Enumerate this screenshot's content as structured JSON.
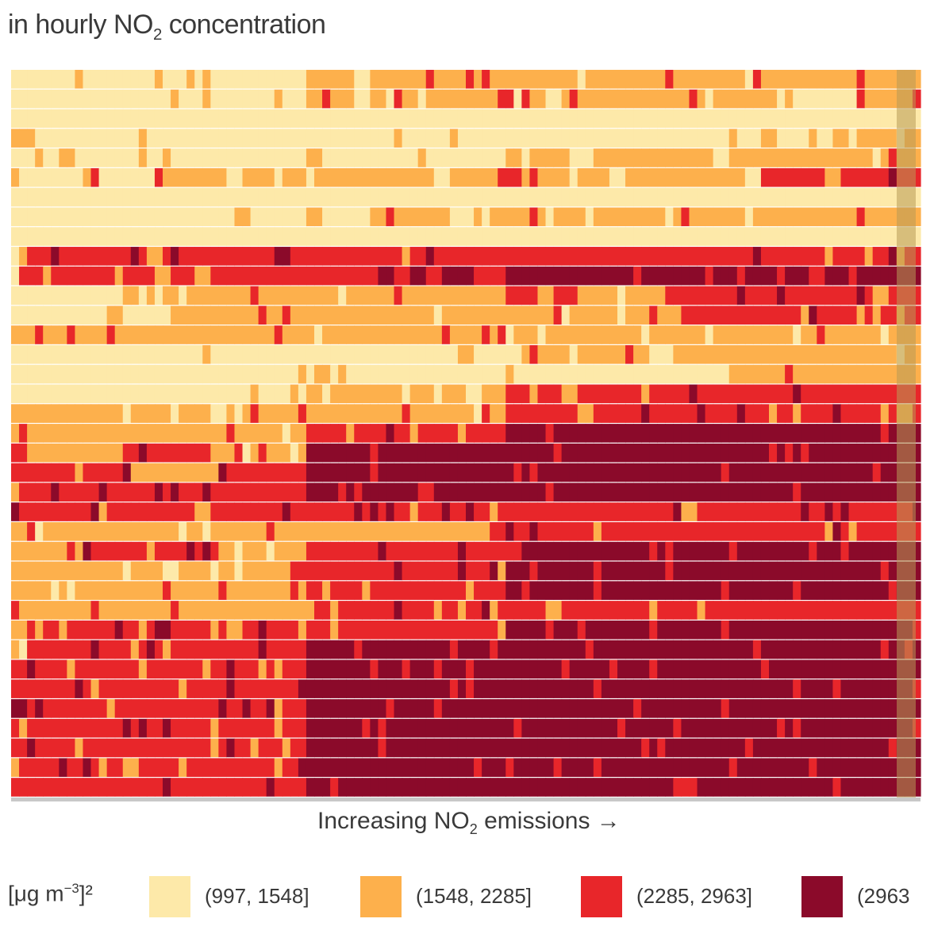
{
  "chart_data": {
    "type": "heatmap",
    "title_prefix": "in hourly NO",
    "title_sub": "2",
    "title_suffix": " concentration",
    "xlabel_prefix": "Increasing NO",
    "xlabel_sub": "2",
    "xlabel_suffix": " emissions →",
    "legend_unit": "[μg m",
    "legend_unit_sup": "−3",
    "legend_unit_suffix": "]²",
    "categories": [
      "(997, 1548]",
      "(1548, 2285]",
      "(2285, 2963]",
      "(2963"
    ],
    "colors": {
      "c0": "#fde9a9",
      "c1": "#fdb04c",
      "c2": "#e8262a",
      "c3": "#8b0a2a",
      "edge_band": "#b89a55",
      "grid": "#ffffff",
      "baseline": "#c8c8c8"
    },
    "grid": {
      "rows": 37,
      "cols": 114
    },
    "row_profiles": [
      [
        [
          0,
          37,
          0
        ],
        [
          37,
          43,
          1
        ],
        [
          43,
          45,
          0
        ],
        [
          45,
          96,
          1
        ],
        [
          96,
          97,
          2
        ],
        [
          96,
          106,
          1
        ],
        [
          106,
          107,
          2
        ],
        [
          107,
          110,
          1
        ],
        [
          110,
          114,
          1
        ]
      ],
      [
        [
          0,
          37,
          0
        ],
        [
          37,
          43,
          1
        ],
        [
          43,
          45,
          0
        ],
        [
          45,
          96,
          1
        ],
        [
          106,
          107,
          2
        ],
        [
          107,
          114,
          1
        ]
      ],
      [
        [
          0,
          114,
          0
        ]
      ],
      [
        [
          0,
          94,
          0
        ],
        [
          94,
          96,
          1
        ],
        [
          96,
          103,
          0
        ],
        [
          103,
          105,
          1
        ],
        [
          105,
          106,
          0
        ],
        [
          106,
          114,
          1
        ]
      ],
      [
        [
          0,
          37,
          0
        ],
        [
          37,
          39,
          1
        ],
        [
          39,
          62,
          0
        ],
        [
          62,
          114,
          1
        ]
      ],
      [
        [
          0,
          9,
          0
        ],
        [
          9,
          11,
          1
        ],
        [
          11,
          18,
          0
        ],
        [
          18,
          27,
          1
        ],
        [
          27,
          29,
          0
        ],
        [
          29,
          61,
          1
        ],
        [
          61,
          64,
          2
        ],
        [
          64,
          94,
          1
        ],
        [
          94,
          114,
          2
        ]
      ],
      [
        [
          0,
          114,
          0
        ]
      ],
      [
        [
          0,
          37,
          0
        ],
        [
          37,
          39,
          1
        ],
        [
          39,
          45,
          0
        ],
        [
          45,
          55,
          1
        ],
        [
          55,
          58,
          0
        ],
        [
          58,
          114,
          1
        ]
      ],
      [
        [
          0,
          114,
          0
        ]
      ],
      [
        [
          0,
          1,
          0
        ],
        [
          1,
          114,
          2
        ]
      ],
      [
        [
          0,
          1,
          0
        ],
        [
          1,
          46,
          2
        ],
        [
          46,
          48,
          3
        ],
        [
          48,
          50,
          2
        ],
        [
          50,
          58,
          3
        ],
        [
          58,
          62,
          2
        ],
        [
          62,
          64,
          3
        ],
        [
          64,
          114,
          3
        ]
      ],
      [
        [
          0,
          14,
          0
        ],
        [
          14,
          36,
          1
        ],
        [
          36,
          62,
          1
        ],
        [
          62,
          72,
          2
        ],
        [
          72,
          82,
          1
        ],
        [
          82,
          114,
          2
        ]
      ],
      [
        [
          0,
          20,
          0
        ],
        [
          20,
          30,
          1
        ],
        [
          30,
          62,
          1
        ],
        [
          62,
          84,
          1
        ],
        [
          84,
          100,
          2
        ],
        [
          100,
          114,
          2
        ]
      ],
      [
        [
          0,
          114,
          1
        ]
      ],
      [
        [
          0,
          56,
          0
        ],
        [
          56,
          58,
          1
        ],
        [
          58,
          63,
          0
        ],
        [
          63,
          114,
          1
        ]
      ],
      [
        [
          0,
          64,
          0
        ],
        [
          64,
          90,
          0
        ],
        [
          90,
          114,
          1
        ]
      ],
      [
        [
          0,
          37,
          0
        ],
        [
          37,
          62,
          1
        ],
        [
          62,
          114,
          2
        ]
      ],
      [
        [
          0,
          2,
          1
        ],
        [
          2,
          37,
          1
        ],
        [
          37,
          62,
          1
        ],
        [
          62,
          114,
          2
        ]
      ],
      [
        [
          0,
          5,
          1
        ],
        [
          5,
          37,
          1
        ],
        [
          37,
          62,
          2
        ],
        [
          62,
          114,
          3
        ]
      ],
      [
        [
          0,
          2,
          2
        ],
        [
          2,
          15,
          1
        ],
        [
          15,
          26,
          2
        ],
        [
          26,
          37,
          1
        ],
        [
          37,
          60,
          3
        ],
        [
          60,
          114,
          3
        ]
      ],
      [
        [
          0,
          2,
          2
        ],
        [
          2,
          16,
          2
        ],
        [
          16,
          26,
          1
        ],
        [
          26,
          37,
          2
        ],
        [
          37,
          62,
          3
        ],
        [
          62,
          94,
          3
        ],
        [
          94,
          114,
          3
        ]
      ],
      [
        [
          0,
          114,
          2
        ],
        [
          37,
          114,
          3
        ]
      ],
      [
        [
          0,
          1,
          2
        ],
        [
          1,
          114,
          2
        ]
      ],
      [
        [
          0,
          9,
          1
        ],
        [
          9,
          38,
          1
        ],
        [
          38,
          60,
          1
        ],
        [
          60,
          114,
          2
        ]
      ],
      [
        [
          0,
          9,
          1
        ],
        [
          9,
          16,
          2
        ],
        [
          16,
          26,
          2
        ],
        [
          26,
          37,
          1
        ],
        [
          37,
          64,
          2
        ],
        [
          64,
          114,
          3
        ]
      ],
      [
        [
          0,
          9,
          1
        ],
        [
          9,
          37,
          1
        ],
        [
          37,
          62,
          2
        ],
        [
          62,
          114,
          3
        ]
      ],
      [
        [
          0,
          9,
          1
        ],
        [
          9,
          37,
          1
        ],
        [
          37,
          62,
          2
        ],
        [
          62,
          114,
          3
        ]
      ],
      [
        [
          0,
          2,
          1
        ],
        [
          2,
          37,
          1
        ],
        [
          37,
          62,
          2
        ],
        [
          62,
          114,
          2
        ]
      ],
      [
        [
          0,
          2,
          1
        ],
        [
          2,
          37,
          2
        ],
        [
          37,
          62,
          2
        ],
        [
          62,
          114,
          3
        ]
      ],
      [
        [
          0,
          2,
          1
        ],
        [
          2,
          37,
          2
        ],
        [
          37,
          62,
          3
        ],
        [
          62,
          114,
          3
        ]
      ],
      [
        [
          0,
          2,
          2
        ],
        [
          2,
          37,
          2
        ],
        [
          37,
          114,
          3
        ]
      ],
      [
        [
          0,
          2,
          2
        ],
        [
          2,
          37,
          2
        ],
        [
          37,
          114,
          3
        ]
      ],
      [
        [
          0,
          2,
          3
        ],
        [
          2,
          37,
          2
        ],
        [
          37,
          114,
          3
        ]
      ],
      [
        [
          0,
          2,
          2
        ],
        [
          2,
          37,
          2
        ],
        [
          37,
          114,
          3
        ]
      ],
      [
        [
          0,
          2,
          2
        ],
        [
          2,
          37,
          2
        ],
        [
          37,
          114,
          3
        ]
      ],
      [
        [
          0,
          2,
          2
        ],
        [
          2,
          37,
          2
        ],
        [
          37,
          114,
          3
        ]
      ],
      [
        [
          0,
          2,
          2
        ],
        [
          2,
          37,
          2
        ],
        [
          37,
          114,
          3
        ]
      ]
    ],
    "noise_seed": 7,
    "noise_rate": 0.14
  }
}
